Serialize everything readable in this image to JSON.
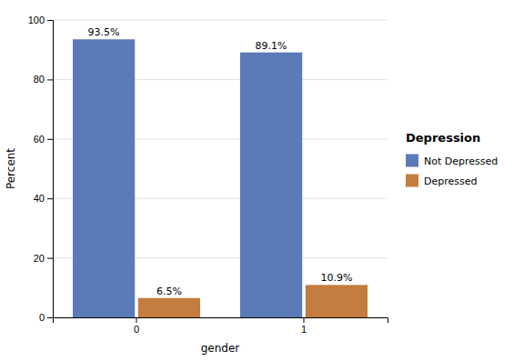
{
  "chart_data": {
    "type": "bar",
    "categories": [
      "0",
      "1"
    ],
    "series": [
      {
        "name": "Not Depressed",
        "color": "#5b7ab8",
        "values": [
          93.5,
          89.1
        ],
        "value_labels": [
          "93.5%",
          "89.1%"
        ]
      },
      {
        "name": "Depressed",
        "color": "#c47d3e",
        "values": [
          6.5,
          10.9
        ],
        "value_labels": [
          "6.5%",
          "10.9%"
        ]
      }
    ],
    "xlabel": "gender",
    "ylabel": "Percent",
    "legend_title": "Depression",
    "ylim": [
      0,
      100
    ],
    "yticks": [
      0,
      20,
      40,
      60,
      80,
      100
    ],
    "grid": true,
    "legend": "right",
    "data_labels": true
  }
}
